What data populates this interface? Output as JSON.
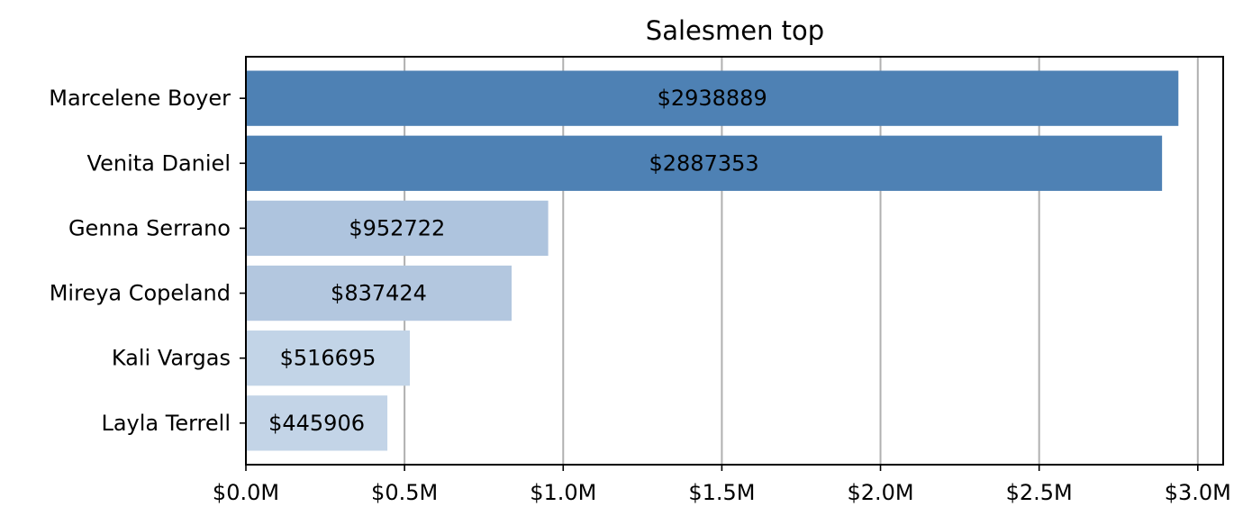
{
  "chart_data": {
    "type": "bar",
    "orientation": "horizontal",
    "title": "Salesmen top",
    "xlabel": "",
    "ylabel": "",
    "categories": [
      "Marcelene Boyer",
      "Venita Daniel",
      "Genna Serrano",
      "Mireya Copeland",
      "Kali Vargas",
      "Layla Terrell"
    ],
    "values": [
      2938889,
      2887353,
      952722,
      837424,
      516695,
      445906
    ],
    "value_labels": [
      "$2938889",
      "$2887353",
      "$952722",
      "$837424",
      "$516695",
      "$445906"
    ],
    "bar_colors": [
      "#4e81b4",
      "#4e81b4",
      "#aec4de",
      "#b3c7df",
      "#c2d4e7",
      "#c3d4e7"
    ],
    "xlim": [
      0,
      3080000
    ],
    "xticks": [
      0,
      500000,
      1000000,
      1500000,
      2000000,
      2500000,
      3000000
    ],
    "xtick_labels": [
      "$0.0M",
      "$0.5M",
      "$1.0M",
      "$1.5M",
      "$2.0M",
      "$2.5M",
      "$3.0M"
    ],
    "grid": "x-axis vertical lines",
    "legend": "none"
  }
}
